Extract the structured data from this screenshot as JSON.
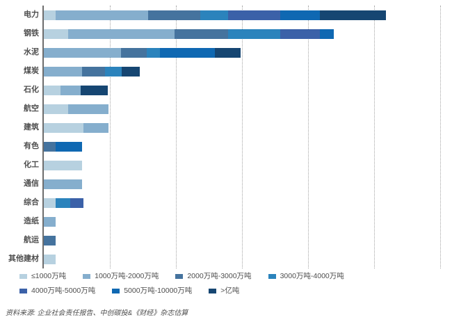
{
  "chart": {
    "source_note": "资料来源: 企业社会责任报告、中创碳投&《财经》杂志估算",
    "axis": {
      "x_tick_labels_visible": false,
      "gridline_count": 6,
      "gridline_spacing_px": 95,
      "axis_color": "#6d6d6d",
      "gridline_color": "#a3a3a3"
    },
    "legend_rows": [
      [
        0,
        1,
        2,
        3
      ],
      [
        4,
        5,
        6
      ]
    ],
    "chart_data": {
      "type": "bar",
      "orientation": "horizontal",
      "stacked": true,
      "title": "",
      "xlabel": "",
      "ylabel": "",
      "value_unit": "pixel-width (x axis unlabeled; one dotted gridline interval = 95 units)",
      "xlim": [
        0,
        576
      ],
      "grid": "vertical-dotted",
      "legend_position": "bottom",
      "categories": [
        "电力",
        "钢铁",
        "水泥",
        "煤炭",
        "石化",
        "航空",
        "建筑",
        "有色",
        "化工",
        "通信",
        "综合",
        "造纸",
        "航运",
        "其他建材"
      ],
      "series": [
        {
          "name": "≤1000万吨",
          "color": "#b7d1e0",
          "values": [
            17,
            35,
            0,
            0,
            24,
            35,
            57,
            0,
            55,
            0,
            17,
            0,
            0,
            17
          ]
        },
        {
          "name": "1000万吨-2000万吨",
          "color": "#85aecd",
          "values": [
            133,
            153,
            111,
            55,
            29,
            58,
            36,
            0,
            0,
            55,
            0,
            17,
            0,
            0
          ]
        },
        {
          "name": "2000万吨-3000万吨",
          "color": "#45739e",
          "values": [
            75,
            77,
            37,
            33,
            0,
            0,
            0,
            17,
            0,
            0,
            0,
            0,
            17,
            0
          ]
        },
        {
          "name": "3000万吨-4000万吨",
          "color": "#2b83bc",
          "values": [
            40,
            75,
            19,
            24,
            0,
            0,
            0,
            0,
            0,
            0,
            21,
            0,
            0,
            0
          ]
        },
        {
          "name": "4000万吨-5000万吨",
          "color": "#3b61a8",
          "values": [
            75,
            57,
            0,
            0,
            0,
            0,
            0,
            0,
            0,
            0,
            19,
            0,
            0,
            0
          ]
        },
        {
          "name": "5000万吨-10000万吨",
          "color": "#0f68b2",
          "values": [
            57,
            20,
            79,
            0,
            0,
            0,
            0,
            38,
            0,
            0,
            0,
            0,
            0,
            0
          ]
        },
        {
          "name": ">亿吨",
          "color": "#164672",
          "values": [
            95,
            0,
            37,
            26,
            39,
            0,
            0,
            0,
            0,
            0,
            0,
            0,
            0,
            0
          ]
        }
      ]
    }
  }
}
